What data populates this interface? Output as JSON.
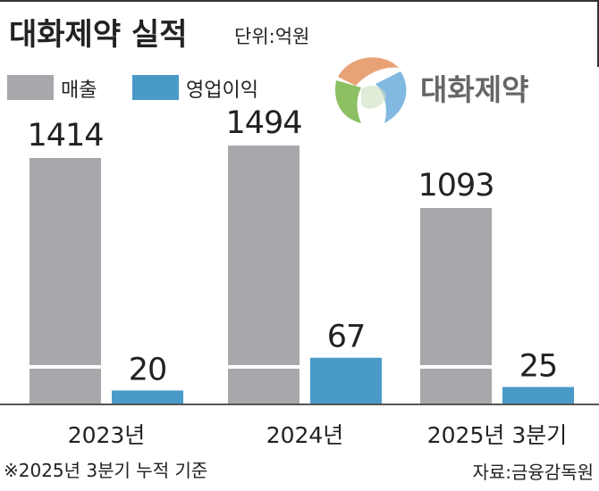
{
  "title": "대화제약 실적",
  "unit_label": "단위:억원",
  "logo": {
    "text": "대화제약"
  },
  "footnote": "※2025년 3분기 누적 기준",
  "source": "자료:금융감독원",
  "colors": {
    "sales": "#a7a8ab",
    "operating_profit": "#4a9ac9",
    "axis": "#555555"
  },
  "chart_data": {
    "type": "bar",
    "categories": [
      "2023년",
      "2024년",
      "2025년 3분기"
    ],
    "series": [
      {
        "name": "매출",
        "values": [
          1414,
          1494,
          1093
        ]
      },
      {
        "name": "영업이익",
        "values": [
          20,
          67,
          25
        ]
      }
    ],
    "axis_break": true,
    "legend_position": "top-left",
    "grid": false,
    "xlabel": "",
    "ylabel": ""
  }
}
